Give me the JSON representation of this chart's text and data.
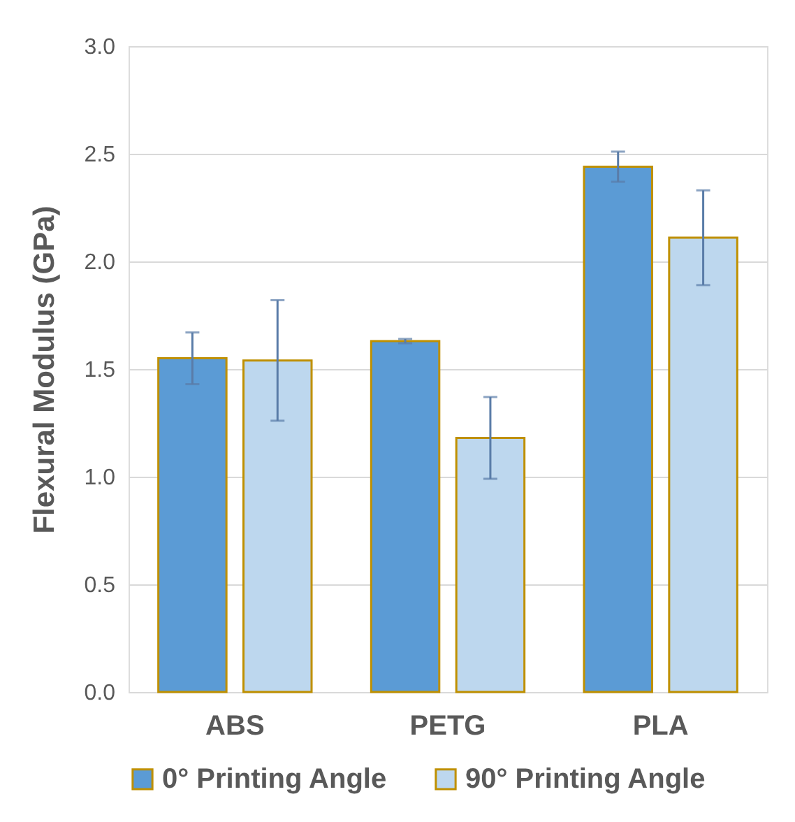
{
  "chart_data": {
    "type": "bar",
    "ylabel": "Flexural Modulus (GPa)",
    "categories": [
      "ABS",
      "PETG",
      "PLA"
    ],
    "series": [
      {
        "name": "0° Printing Angle",
        "color": "#5b9bd5",
        "values": [
          1.55,
          1.63,
          2.44
        ],
        "errors": [
          0.12,
          0.01,
          0.07
        ]
      },
      {
        "name": "90° Printing Angle",
        "color": "#bdd7ee",
        "values": [
          1.54,
          1.18,
          2.11
        ],
        "errors": [
          0.28,
          0.19,
          0.22
        ]
      }
    ],
    "ylim": [
      0,
      3
    ],
    "yticks": [
      {
        "value": 0,
        "label": "0.0"
      },
      {
        "value": 0.5,
        "label": "0.5"
      },
      {
        "value": 1,
        "label": "1.0"
      },
      {
        "value": 1.5,
        "label": "1.5"
      },
      {
        "value": 2,
        "label": "2.0"
      },
      {
        "value": 2.5,
        "label": "2.5"
      },
      {
        "value": 3,
        "label": "3.0"
      }
    ],
    "grid": "y",
    "legend": "bottom"
  }
}
